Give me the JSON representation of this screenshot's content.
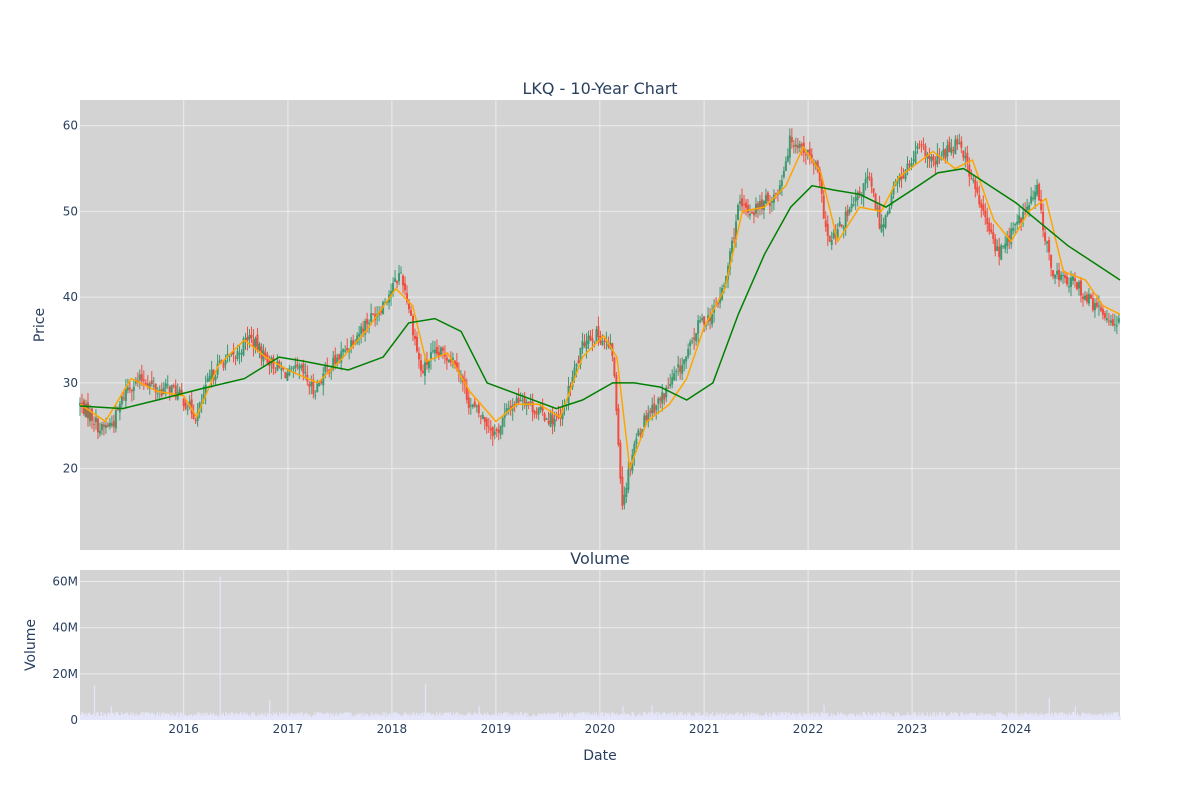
{
  "colors": {
    "plot_bg": "#d3d3d3",
    "grid": "#e9ecef",
    "increasing": "#3d9970",
    "decreasing": "#ef4d3f",
    "ma_short": "#ffa500",
    "ma_long": "#008000",
    "volume": "#e6e6fa"
  },
  "chart_data": [
    {
      "type": "candlestick",
      "title": "LKQ - 10-Year Chart",
      "ylabel": "Price",
      "xlabel": "",
      "xlim": [
        "2015-01-02",
        "2024-12-31"
      ],
      "ylim": [
        10.5,
        63
      ],
      "yticks": [
        20,
        30,
        40,
        50,
        60
      ],
      "xticks": [
        "2016-01-01",
        "2017-01-01",
        "2018-01-01",
        "2019-01-01",
        "2020-01-01",
        "2021-01-01",
        "2022-01-01",
        "2023-01-01",
        "2024-01-01"
      ],
      "xtick_labels": [
        "2016",
        "2017",
        "2018",
        "2019",
        "2020",
        "2021",
        "2022",
        "2023",
        "2024"
      ],
      "grid": true,
      "series": [
        {
          "kind": "price-close",
          "x": [
            "2015-01-02",
            "2015-02-15",
            "2015-03-15",
            "2015-05-01",
            "2015-06-15",
            "2015-08-15",
            "2015-10-01",
            "2015-11-15",
            "2016-01-01",
            "2016-02-15",
            "2016-04-01",
            "2016-05-15",
            "2016-07-01",
            "2016-08-15",
            "2016-10-01",
            "2016-11-15",
            "2017-01-01",
            "2017-02-15",
            "2017-04-01",
            "2017-05-15",
            "2017-07-01",
            "2017-08-15",
            "2017-10-01",
            "2017-11-15",
            "2018-01-10",
            "2018-02-01",
            "2018-03-01",
            "2018-04-15",
            "2018-05-15",
            "2018-07-01",
            "2018-08-15",
            "2018-10-01",
            "2018-11-15",
            "2019-01-01",
            "2019-02-15",
            "2019-04-01",
            "2019-05-15",
            "2019-07-01",
            "2019-08-15",
            "2019-10-01",
            "2019-11-15",
            "2020-01-01",
            "2020-02-15",
            "2020-03-20",
            "2020-05-01",
            "2020-06-15",
            "2020-08-01",
            "2020-09-15",
            "2020-11-01",
            "2020-12-15",
            "2021-02-01",
            "2021-03-15",
            "2021-05-01",
            "2021-06-15",
            "2021-08-01",
            "2021-09-15",
            "2021-11-01",
            "2021-12-15",
            "2022-02-01",
            "2022-03-15",
            "2022-05-01",
            "2022-06-15",
            "2022-08-01",
            "2022-09-15",
            "2022-11-01",
            "2022-12-15",
            "2023-02-01",
            "2023-03-15",
            "2023-05-01",
            "2023-06-15",
            "2023-08-01",
            "2023-09-15",
            "2023-11-01",
            "2023-12-15",
            "2024-02-01",
            "2024-03-15",
            "2024-05-01",
            "2024-06-15",
            "2024-08-01",
            "2024-09-15",
            "2024-11-01",
            "2024-12-31"
          ],
          "y": [
            27.5,
            26.0,
            24.5,
            25.5,
            29.5,
            30.5,
            29.0,
            29.5,
            28.0,
            26.0,
            30.5,
            32.5,
            33.0,
            35.5,
            33.5,
            32.0,
            31.0,
            31.5,
            29.0,
            31.5,
            33.0,
            35.0,
            37.0,
            38.5,
            41.5,
            43.0,
            39.0,
            31.0,
            33.0,
            33.5,
            32.5,
            27.5,
            26.0,
            24.0,
            27.0,
            28.5,
            27.0,
            26.0,
            25.5,
            31.0,
            35.5,
            35.5,
            33.5,
            16.0,
            23.0,
            26.5,
            28.0,
            30.5,
            33.0,
            37.0,
            38.0,
            41.5,
            50.5,
            50.0,
            51.0,
            52.0,
            58.5,
            57.5,
            55.0,
            46.0,
            48.5,
            51.0,
            54.0,
            48.0,
            53.0,
            55.0,
            57.5,
            55.5,
            57.0,
            58.5,
            53.5,
            49.0,
            45.0,
            47.5,
            50.0,
            52.5,
            43.5,
            42.0,
            41.5,
            39.5,
            38.0,
            37.0
          ]
        },
        {
          "kind": "moving-average-short",
          "x": [
            "2015-01-02",
            "2015-04-01",
            "2015-07-01",
            "2015-10-01",
            "2016-01-01",
            "2016-02-15",
            "2016-05-01",
            "2016-08-01",
            "2016-10-15",
            "2017-01-01",
            "2017-04-15",
            "2017-07-01",
            "2017-10-01",
            "2018-01-15",
            "2018-03-15",
            "2018-05-01",
            "2018-07-15",
            "2018-10-01",
            "2019-01-01",
            "2019-03-15",
            "2019-06-01",
            "2019-08-15",
            "2019-11-01",
            "2020-01-15",
            "2020-03-01",
            "2020-04-15",
            "2020-06-15",
            "2020-09-01",
            "2020-11-01",
            "2021-01-01",
            "2021-03-15",
            "2021-05-15",
            "2021-08-01",
            "2021-10-15",
            "2021-12-15",
            "2022-02-15",
            "2022-04-15",
            "2022-07-01",
            "2022-09-15",
            "2022-11-15",
            "2023-01-15",
            "2023-03-15",
            "2023-06-01",
            "2023-08-01",
            "2023-10-15",
            "2023-12-15",
            "2024-02-15",
            "2024-04-15",
            "2024-06-15",
            "2024-09-01",
            "2024-11-01",
            "2024-12-31"
          ],
          "y": [
            27.5,
            25.5,
            30.5,
            29.0,
            28.5,
            26.0,
            32.0,
            35.0,
            33.0,
            31.5,
            30.0,
            32.5,
            36.0,
            41.0,
            39.0,
            32.5,
            33.5,
            29.0,
            25.5,
            27.5,
            27.5,
            26.0,
            33.0,
            35.5,
            33.0,
            20.0,
            25.5,
            27.5,
            30.5,
            36.5,
            41.0,
            50.0,
            50.5,
            53.0,
            57.5,
            54.5,
            46.5,
            50.5,
            50.0,
            54.0,
            55.5,
            57.0,
            55.0,
            56.0,
            49.0,
            46.5,
            50.0,
            51.5,
            43.0,
            42.0,
            39.0,
            38.0
          ]
        },
        {
          "kind": "moving-average-long",
          "x": [
            "2015-01-02",
            "2015-06-01",
            "2015-10-01",
            "2016-03-01",
            "2016-08-01",
            "2016-12-01",
            "2017-03-01",
            "2017-08-01",
            "2017-12-01",
            "2018-03-01",
            "2018-06-01",
            "2018-09-01",
            "2018-12-01",
            "2019-04-01",
            "2019-08-01",
            "2019-11-01",
            "2020-02-15",
            "2020-05-01",
            "2020-08-01",
            "2020-11-01",
            "2021-02-01",
            "2021-05-01",
            "2021-08-01",
            "2021-11-01",
            "2022-01-15",
            "2022-04-01",
            "2022-07-01",
            "2022-10-01",
            "2023-01-01",
            "2023-04-01",
            "2023-07-01",
            "2023-10-01",
            "2024-01-01",
            "2024-04-01",
            "2024-07-01",
            "2024-10-01",
            "2024-12-31"
          ],
          "y": [
            27.3,
            27.0,
            28.0,
            29.3,
            30.5,
            33.0,
            32.5,
            31.5,
            33.0,
            37.0,
            37.5,
            36.0,
            30.0,
            28.5,
            27.0,
            28.0,
            30.0,
            30.0,
            29.5,
            28.0,
            30.0,
            38.0,
            45.0,
            50.5,
            53.0,
            52.5,
            52.0,
            50.5,
            52.5,
            54.5,
            55.0,
            53.0,
            51.0,
            48.5,
            46.0,
            44.0,
            42.0
          ]
        }
      ]
    },
    {
      "type": "bar",
      "title": "Volume",
      "ylabel": "Volume",
      "xlabel": "Date",
      "ylim": [
        0,
        65000000
      ],
      "yticks": [
        0,
        20000000,
        40000000,
        60000000
      ],
      "ytick_labels": [
        "0",
        "20M",
        "40M",
        "60M"
      ],
      "xtick_labels": [
        "2016",
        "2017",
        "2018",
        "2019",
        "2020",
        "2021",
        "2022",
        "2023",
        "2024"
      ],
      "grid": true,
      "baseline_volume": 2200000,
      "spikes": [
        {
          "date": "2015-02-20",
          "value": 15000000
        },
        {
          "date": "2015-04-20",
          "value": 6000000
        },
        {
          "date": "2016-05-06",
          "value": 62000000
        },
        {
          "date": "2016-10-27",
          "value": 8500000
        },
        {
          "date": "2018-04-27",
          "value": 15500000
        },
        {
          "date": "2018-11-01",
          "value": 6000000
        },
        {
          "date": "2020-03-20",
          "value": 6000000
        },
        {
          "date": "2020-06-30",
          "value": 6500000
        },
        {
          "date": "2022-02-24",
          "value": 6500000
        },
        {
          "date": "2024-04-25",
          "value": 9500000
        },
        {
          "date": "2024-07-25",
          "value": 6000000
        }
      ]
    }
  ]
}
